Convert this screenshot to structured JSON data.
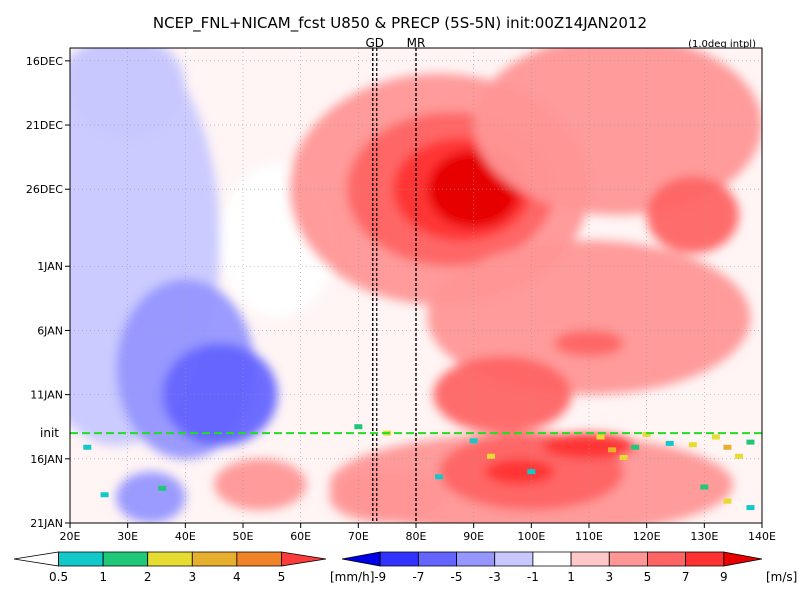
{
  "chart_data": {
    "type": "heatmap",
    "title": "NCEP_FNL+NICAM_fcst U850 & PRECP (5S-5N) init:00Z14JAN2012",
    "subtitle": "(1.0deg intpl)",
    "x_ticks": [
      "20E",
      "30E",
      "40E",
      "50E",
      "60E",
      "70E",
      "80E",
      "90E",
      "100E",
      "110E",
      "120E",
      "130E",
      "140E"
    ],
    "x_values": [
      20,
      30,
      40,
      50,
      60,
      70,
      80,
      90,
      100,
      110,
      120,
      130,
      140
    ],
    "xlim": [
      20,
      140
    ],
    "y_ticks": [
      "16DEC",
      "21DEC",
      "26DEC",
      "1JAN",
      "6JAN",
      "11JAN",
      "16JAN",
      "21JAN"
    ],
    "y_values": [
      0,
      5,
      10,
      16,
      21,
      26,
      31,
      36
    ],
    "ylim": [
      -1,
      36
    ],
    "init_label": "init",
    "init_y": 29,
    "ref_lines": [
      {
        "label": "GD",
        "x": 72.5
      },
      {
        "label": "MR",
        "x": 80
      }
    ],
    "precip_colorbar": {
      "labels": [
        "0.5",
        "1",
        "2",
        "3",
        "4",
        "5"
      ],
      "unit": "[mm/h]",
      "colors": [
        "#ffffff",
        "#12c8c8",
        "#1ec878",
        "#e6dc32",
        "#e6af2d",
        "#f08228",
        "#fa3c3c"
      ]
    },
    "wind_colorbar": {
      "labels": [
        "-9",
        "-7",
        "-5",
        "-3",
        "-1",
        "1",
        "3",
        "5",
        "7",
        "9"
      ],
      "unit": "[m/s]",
      "colors": [
        "#0000e6",
        "#3232ff",
        "#6464ff",
        "#9696ff",
        "#c8c8ff",
        "#ffffff",
        "#ffc8c8",
        "#ff9696",
        "#ff6464",
        "#ff3232",
        "#e60000"
      ]
    },
    "u850_fields": [
      {
        "lon": 28,
        "day": 14,
        "rx": 18,
        "ry": 16,
        "u": -3
      },
      {
        "lon": 40,
        "day": 24,
        "rx": 12,
        "ry": 7,
        "u": -5
      },
      {
        "lon": 30,
        "day": 2,
        "rx": 10,
        "ry": 4,
        "u": -3
      },
      {
        "lon": 46,
        "day": 26,
        "rx": 10,
        "ry": 4,
        "u": -7
      },
      {
        "lon": 34,
        "day": 34,
        "rx": 6,
        "ry": 2,
        "u": -5
      },
      {
        "lon": 56,
        "day": 14,
        "rx": 10,
        "ry": 6,
        "u": -1
      },
      {
        "lon": 84,
        "day": 10,
        "rx": 26,
        "ry": 9,
        "u": 3
      },
      {
        "lon": 86,
        "day": 10,
        "rx": 18,
        "ry": 6,
        "u": 5
      },
      {
        "lon": 88,
        "day": 10,
        "rx": 12,
        "ry": 4,
        "u": 7
      },
      {
        "lon": 90,
        "day": 10,
        "rx": 8,
        "ry": 3,
        "u": 9
      },
      {
        "lon": 115,
        "day": 5,
        "rx": 25,
        "ry": 7,
        "u": 3
      },
      {
        "lon": 110,
        "day": 20,
        "rx": 28,
        "ry": 6,
        "u": 3
      },
      {
        "lon": 128,
        "day": 12,
        "rx": 8,
        "ry": 3,
        "u": 5
      },
      {
        "lon": 110,
        "day": 22,
        "rx": 6,
        "ry": 1,
        "u": 5
      },
      {
        "lon": 95,
        "day": 26,
        "rx": 12,
        "ry": 3,
        "u": 5
      },
      {
        "lon": 100,
        "day": 33,
        "rx": 35,
        "ry": 4,
        "u": 3
      },
      {
        "lon": 100,
        "day": 32,
        "rx": 16,
        "ry": 3,
        "u": 5
      },
      {
        "lon": 98,
        "day": 32,
        "rx": 6,
        "ry": 1,
        "u": 7
      },
      {
        "lon": 75,
        "day": 34,
        "rx": 10,
        "ry": 2,
        "u": 3
      },
      {
        "lon": 110,
        "day": 30,
        "rx": 8,
        "ry": 1,
        "u": 7
      },
      {
        "lon": 53,
        "day": 33,
        "rx": 8,
        "ry": 2,
        "u": 3
      }
    ],
    "precip_marks": [
      {
        "lon": 70,
        "day": 28.5,
        "mm": 2
      },
      {
        "lon": 75,
        "day": 29.0,
        "mm": 3
      },
      {
        "lon": 90,
        "day": 29.6,
        "mm": 1
      },
      {
        "lon": 93,
        "day": 30.8,
        "mm": 3
      },
      {
        "lon": 100,
        "day": 32.0,
        "mm": 1
      },
      {
        "lon": 112,
        "day": 29.3,
        "mm": 3
      },
      {
        "lon": 114,
        "day": 30.3,
        "mm": 4
      },
      {
        "lon": 116,
        "day": 30.9,
        "mm": 3
      },
      {
        "lon": 118,
        "day": 30.1,
        "mm": 2
      },
      {
        "lon": 120,
        "day": 29.1,
        "mm": 3
      },
      {
        "lon": 124,
        "day": 29.8,
        "mm": 1
      },
      {
        "lon": 128,
        "day": 29.9,
        "mm": 3
      },
      {
        "lon": 132,
        "day": 29.3,
        "mm": 3
      },
      {
        "lon": 134,
        "day": 30.1,
        "mm": 4
      },
      {
        "lon": 136,
        "day": 30.8,
        "mm": 3
      },
      {
        "lon": 138,
        "day": 29.7,
        "mm": 2
      },
      {
        "lon": 23,
        "day": 30.1,
        "mm": 1
      },
      {
        "lon": 26,
        "day": 33.8,
        "mm": 1
      },
      {
        "lon": 36,
        "day": 33.3,
        "mm": 2
      },
      {
        "lon": 84,
        "day": 32.4,
        "mm": 1
      },
      {
        "lon": 130,
        "day": 33.2,
        "mm": 2
      },
      {
        "lon": 134,
        "day": 34.3,
        "mm": 3
      },
      {
        "lon": 138,
        "day": 34.8,
        "mm": 1
      }
    ]
  }
}
